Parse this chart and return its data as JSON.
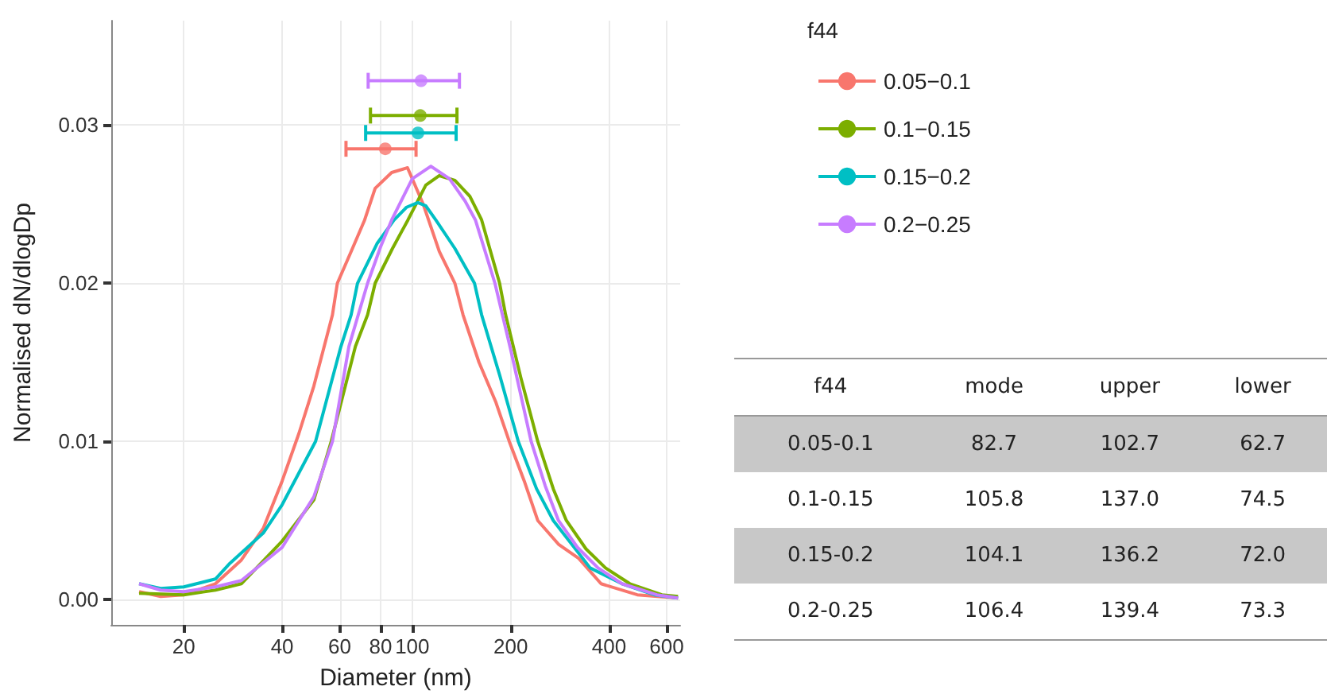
{
  "chart_data": [
    {
      "type": "line",
      "xlabel": "Diameter (nm)",
      "ylabel": "Normalised dN/dlogDp",
      "legend_title": "f44",
      "legend": "right",
      "log": "x",
      "grid": true,
      "marker": "none",
      "line_style": "solid",
      "xlim": [
        12,
        660
      ],
      "xticks": [
        20,
        40,
        60,
        80,
        100,
        200,
        400,
        600
      ],
      "ylim": [
        -0.0016,
        0.0366
      ],
      "yticks": [
        {
          "value": 0,
          "label": "0.00"
        },
        0.01,
        0.02,
        0.03
      ],
      "series": [
        {
          "name": "0.05−0.1",
          "color": "#f8766d",
          "x": [
            14.6,
            17,
            20,
            25,
            30,
            35,
            40,
            45,
            50,
            57,
            59,
            65,
            71.5,
            77,
            86.5,
            96.7,
            108,
            121,
            135,
            143,
            160,
            180,
            198,
            220,
            242,
            280,
            323,
            378,
            488,
            650
          ],
          "values": [
            0.0005,
            0.0002,
            0.0003,
            0.001,
            0.0025,
            0.0045,
            0.0075,
            0.0105,
            0.0135,
            0.018,
            0.02,
            0.022,
            0.024,
            0.026,
            0.027,
            0.0273,
            0.025,
            0.022,
            0.02,
            0.018,
            0.015,
            0.0125,
            0.01,
            0.0075,
            0.005,
            0.0035,
            0.0026,
            0.001,
            0.0003,
            0.0001
          ]
        },
        {
          "name": "0.1−0.15",
          "color": "#7cae00",
          "x": [
            14.6,
            20,
            25,
            30,
            40,
            50,
            56.5,
            67,
            73,
            77,
            87,
            97,
            110,
            121,
            135,
            150,
            163,
            185,
            193,
            215,
            242,
            270,
            296,
            340,
            390,
            463,
            580,
            650
          ],
          "values": [
            0.0004,
            0.0003,
            0.0006,
            0.001,
            0.0037,
            0.0063,
            0.01,
            0.016,
            0.018,
            0.02,
            0.0222,
            0.024,
            0.0262,
            0.0268,
            0.0265,
            0.0255,
            0.024,
            0.02,
            0.018,
            0.014,
            0.01,
            0.007,
            0.005,
            0.0032,
            0.002,
            0.001,
            0.0003,
            0.0002
          ]
        },
        {
          "name": "0.15−0.2",
          "color": "#00bfc4",
          "x": [
            14.6,
            17,
            20,
            25,
            27.7,
            35,
            40,
            50.6,
            60.5,
            65,
            68,
            78,
            88,
            96,
            104,
            110,
            118,
            135,
            155,
            163,
            185,
            211,
            240,
            270,
            350,
            438,
            550,
            650
          ],
          "values": [
            0.001,
            0.0007,
            0.0008,
            0.0013,
            0.0023,
            0.0042,
            0.006,
            0.01,
            0.016,
            0.018,
            0.02,
            0.0225,
            0.024,
            0.0248,
            0.0251,
            0.0249,
            0.024,
            0.0222,
            0.02,
            0.018,
            0.0142,
            0.01,
            0.007,
            0.005,
            0.002,
            0.001,
            0.0003,
            0.0001
          ]
        },
        {
          "name": "0.2−0.25",
          "color": "#c77cff",
          "x": [
            14.6,
            17,
            20,
            25,
            30,
            40,
            50,
            57,
            64,
            73,
            80,
            86.5,
            100,
            114,
            130,
            145,
            156,
            179,
            200,
            231,
            255,
            280,
            320,
            370,
            438,
            560,
            650
          ],
          "values": [
            0.001,
            0.0006,
            0.0005,
            0.0008,
            0.0012,
            0.0033,
            0.0065,
            0.01,
            0.016,
            0.02,
            0.0223,
            0.024,
            0.0266,
            0.0274,
            0.0266,
            0.0252,
            0.024,
            0.02,
            0.0158,
            0.01,
            0.0072,
            0.005,
            0.0033,
            0.002,
            0.001,
            0.0003,
            0.0001
          ]
        },
        {
          "type": "scatter",
          "marker": "circle",
          "color": "#f8766d",
          "x": [
            82.7
          ],
          "values": [
            0.0285
          ],
          "xerrors": [
            [
              62.7,
              102.7
            ]
          ]
        },
        {
          "type": "scatter",
          "marker": "circle",
          "color": "#7cae00",
          "x": [
            105.8
          ],
          "values": [
            0.0306
          ],
          "xerrors": [
            [
              74.5,
              137.0
            ]
          ]
        },
        {
          "type": "scatter",
          "marker": "circle",
          "color": "#00bfc4",
          "x": [
            104.1
          ],
          "values": [
            0.0295
          ],
          "xerrors": [
            [
              72.0,
              136.2
            ]
          ]
        },
        {
          "type": "scatter",
          "marker": "circle",
          "color": "#c77cff",
          "x": [
            106.4
          ],
          "values": [
            0.0328
          ],
          "xerrors": [
            [
              73.3,
              139.4
            ]
          ]
        }
      ]
    },
    {
      "type": "other",
      "xlabel": "f44",
      "categories": [
        "0.05-0.1",
        "0.1-0.15",
        "0.15-0.2",
        "0.2-0.25"
      ],
      "series": [
        {
          "name": "mode",
          "values": [
            82.7,
            105.8,
            104.1,
            106.4
          ],
          "value_labels": [
            "82.7",
            "105.8",
            "104.1",
            "106.4"
          ]
        },
        {
          "name": "upper",
          "values": [
            102.7,
            137.0,
            136.2,
            139.4
          ],
          "value_labels": [
            "102.7",
            "137.0",
            "136.2",
            "139.4"
          ]
        },
        {
          "name": "lower",
          "values": [
            62.7,
            74.5,
            72.0,
            73.3
          ],
          "value_labels": [
            "62.7",
            "74.5",
            "72.0",
            "73.3"
          ]
        }
      ]
    }
  ]
}
